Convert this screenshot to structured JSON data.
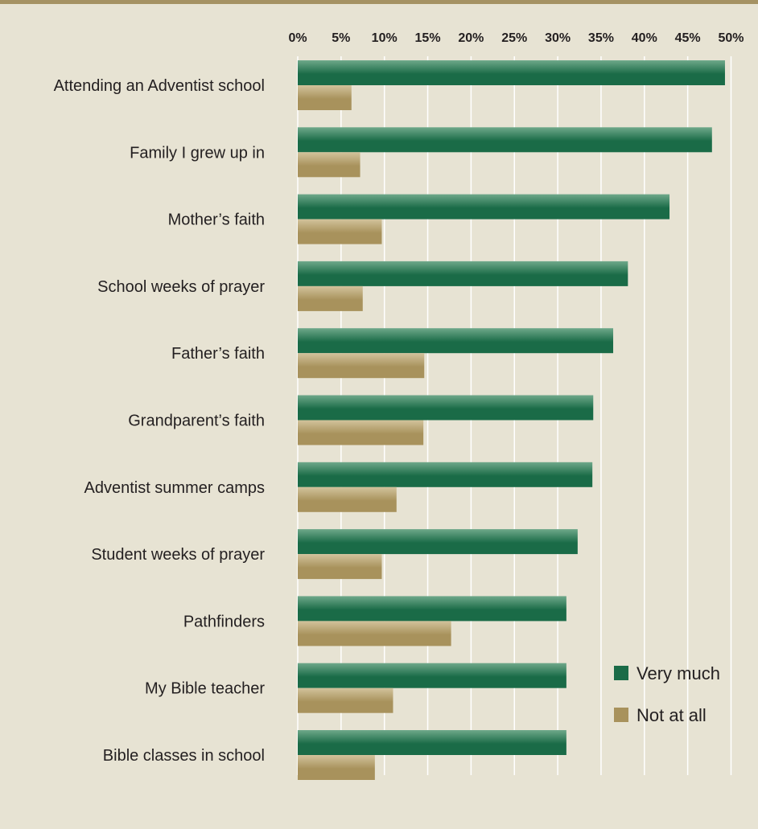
{
  "colors": {
    "background": "#e7e3d3",
    "top_rule": "#a59263",
    "gridline": "#ffffff",
    "very_much": "#1a6b47",
    "not_at_all": "#a8925c"
  },
  "chart_data": {
    "type": "bar",
    "orientation": "horizontal",
    "title": "",
    "xlabel": "",
    "ylabel": "",
    "xlim": [
      0,
      50
    ],
    "x_ticks": [
      "0%",
      "5%",
      "10%",
      "15%",
      "20%",
      "25%",
      "30%",
      "35%",
      "40%",
      "45%",
      "50%"
    ],
    "x_axis_position": "top",
    "grid": true,
    "legend_position": "bottom-right",
    "categories": [
      "Attending an Adventist school",
      "Family I grew up in",
      "Mother’s faith",
      "School weeks of prayer",
      "Father’s faith",
      "Grandparent’s faith",
      "Adventist summer camps",
      "Student weeks of prayer",
      "Pathfinders",
      "My Bible teacher",
      "Bible classes in school"
    ],
    "series": [
      {
        "name": "Very much",
        "color": "#1a6b47",
        "values": [
          49.3,
          47.8,
          42.9,
          38.1,
          36.4,
          34.1,
          34.0,
          32.3,
          31.0,
          31.0,
          31.0
        ]
      },
      {
        "name": "Not at all",
        "color": "#a8925c",
        "values": [
          6.2,
          7.2,
          9.7,
          7.5,
          14.6,
          14.5,
          11.4,
          9.7,
          17.7,
          11.0,
          8.9
        ]
      }
    ]
  }
}
